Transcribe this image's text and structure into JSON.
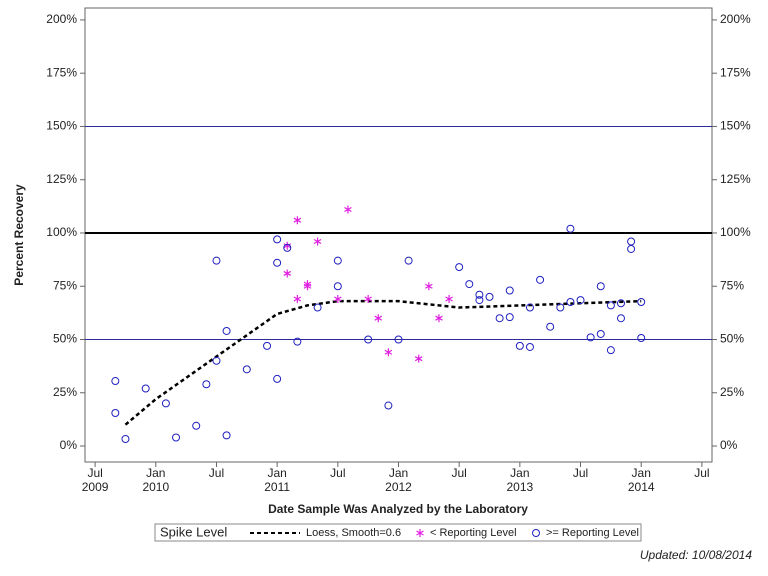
{
  "chart_data": {
    "type": "scatter",
    "x_label": "Date Sample Was Analyzed by the Laboratory",
    "y_label": "Percent Recovery",
    "legend_title": "Spike Level",
    "footnote": "Updated: 10/08/2014",
    "xlim": [
      "2009-06",
      "2014-08"
    ],
    "ylim": [
      -7.5,
      205.6
    ],
    "xticks": [
      {
        "value": "2009-07",
        "label": "Jul 2009"
      },
      {
        "value": "2010-01",
        "label": "Jan 2010"
      },
      {
        "value": "2010-07",
        "label": "Jul"
      },
      {
        "value": "2011-01",
        "label": "Jan 2011"
      },
      {
        "value": "2011-07",
        "label": "Jul"
      },
      {
        "value": "2012-01",
        "label": "Jan 2012"
      },
      {
        "value": "2012-07",
        "label": "Jul"
      },
      {
        "value": "2013-01",
        "label": "Jan 2013"
      },
      {
        "value": "2013-07",
        "label": "Jul"
      },
      {
        "value": "2014-01",
        "label": "Jan 2014"
      },
      {
        "value": "2014-07",
        "label": "Jul"
      }
    ],
    "yticks": [
      {
        "value": 0,
        "label": "0%"
      },
      {
        "value": 25,
        "label": "25%"
      },
      {
        "value": 50,
        "label": "50%"
      },
      {
        "value": 75,
        "label": "75%"
      },
      {
        "value": 100,
        "label": "100%"
      },
      {
        "value": 125,
        "label": "125%"
      },
      {
        "value": 150,
        "label": "150%"
      },
      {
        "value": 175,
        "label": "175%"
      },
      {
        "value": 200,
        "label": "200%"
      }
    ],
    "reference_lines": [
      {
        "value": 50,
        "color": "#2b2b9a",
        "width": 1
      },
      {
        "value": 100,
        "color": "#000000",
        "width": 2
      },
      {
        "value": 150,
        "color": "#2b2b9a",
        "width": 1
      }
    ],
    "series": [
      {
        "name": "Loess, Smooth=0.6",
        "kind": "line",
        "color": "#000000",
        "x": [
          "2009-10",
          "2010-01",
          "2010-07",
          "2011-01",
          "2011-04",
          "2011-07",
          "2012-01",
          "2012-07",
          "2013-01",
          "2013-07",
          "2014-01"
        ],
        "values": [
          10,
          22,
          42,
          62,
          66,
          68,
          68,
          65,
          66,
          67,
          68
        ]
      },
      {
        "name": "< Reporting Level",
        "kind": "asterisk",
        "color": "#e020e0",
        "x": [
          "2011-02",
          "2011-03",
          "2011-02",
          "2011-03",
          "2011-04",
          "2011-04",
          "2011-05",
          "2011-07",
          "2011-08",
          "2011-10",
          "2011-11",
          "2011-12",
          "2012-03",
          "2012-04",
          "2012-05",
          "2012-06"
        ],
        "values": [
          94,
          106,
          81,
          69,
          76,
          75,
          96,
          69,
          111,
          69,
          60,
          44,
          41,
          75,
          60,
          69
        ]
      },
      {
        "name": ">= Reporting Level",
        "kind": "circle",
        "color": "#2020c0",
        "x": [
          "2009-09",
          "2009-09",
          "2009-10",
          "2009-12",
          "2010-02",
          "2010-03",
          "2010-05",
          "2010-06",
          "2010-07",
          "2010-07",
          "2010-08",
          "2010-08",
          "2010-10",
          "2010-12",
          "2011-01",
          "2011-01",
          "2011-01",
          "2011-02",
          "2011-03",
          "2011-05",
          "2011-07",
          "2011-07",
          "2011-10",
          "2011-12",
          "2012-01",
          "2012-02",
          "2012-07",
          "2012-08",
          "2012-09",
          "2012-09",
          "2012-10",
          "2012-11",
          "2012-12",
          "2012-12",
          "2013-01",
          "2013-02",
          "2013-02",
          "2013-03",
          "2013-04",
          "2013-05",
          "2013-06",
          "2013-06",
          "2013-07",
          "2013-08",
          "2013-09",
          "2013-09",
          "2013-10",
          "2013-10",
          "2013-11",
          "2013-11",
          "2013-12",
          "2013-12",
          "2014-01",
          "2014-01"
        ],
        "values": [
          15.5,
          30.5,
          3.3,
          27,
          20,
          4,
          9.5,
          29,
          87,
          40,
          5,
          54,
          36,
          47,
          31.5,
          97,
          86,
          93,
          49,
          65,
          87,
          75,
          50,
          19,
          50,
          87,
          84,
          76,
          71,
          68.5,
          70,
          60,
          73,
          60.5,
          47,
          65,
          46.5,
          78,
          56,
          65,
          102,
          67.6,
          68.5,
          51,
          52.6,
          75,
          66,
          45,
          67,
          60,
          96,
          92.5,
          67.6,
          50.7
        ]
      }
    ]
  }
}
